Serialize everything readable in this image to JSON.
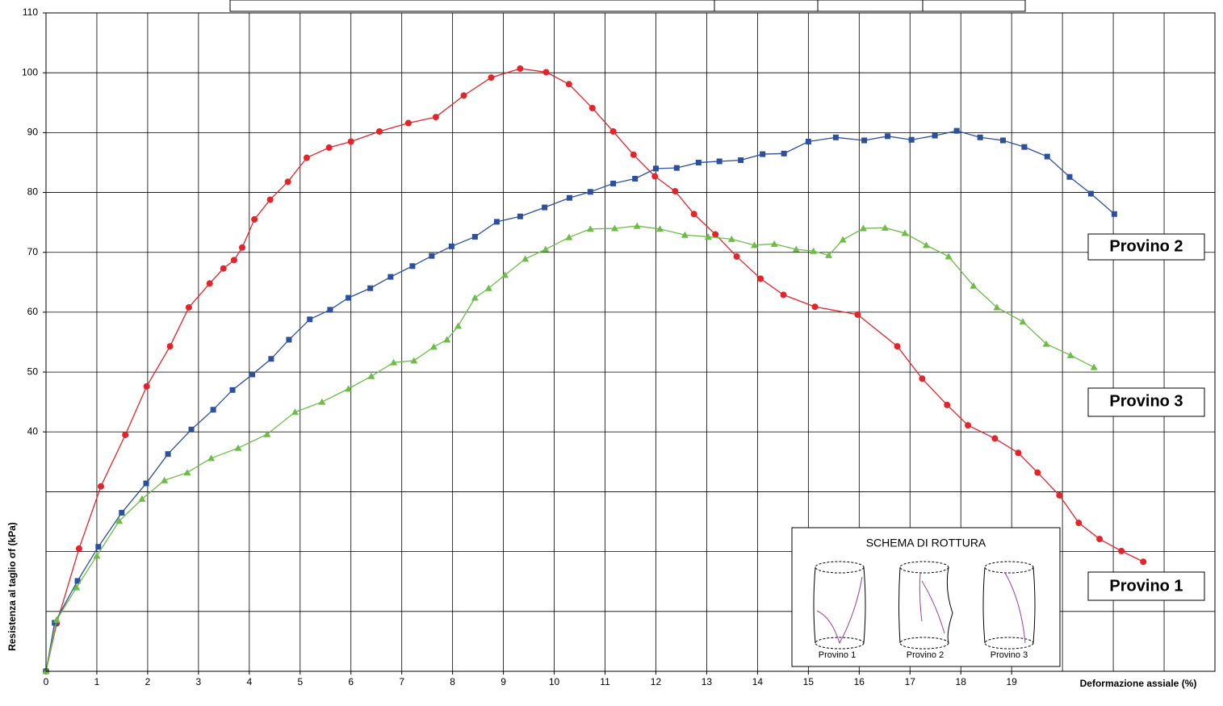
{
  "chart_data": {
    "type": "line",
    "xlabel": "Deformazione assiale (%)",
    "ylabel": "Resistenza al taglio σf (kPa)",
    "xlim": [
      0,
      23
    ],
    "ylim": [
      0,
      110
    ],
    "xticks": [
      0,
      1,
      2,
      3,
      4,
      5,
      6,
      7,
      8,
      9,
      10,
      11,
      12,
      13,
      14,
      15,
      16,
      17,
      18,
      19
    ],
    "xgrid": [
      0,
      1,
      2,
      3,
      4,
      5,
      6,
      7,
      8,
      9,
      10,
      11,
      12,
      13,
      14,
      15,
      16,
      17,
      18,
      19,
      20,
      21,
      22,
      23
    ],
    "yticks": [
      40,
      50,
      60,
      70,
      80,
      90,
      100,
      110
    ],
    "ygrid": [
      0,
      10,
      20,
      30,
      40,
      50,
      60,
      70,
      80,
      90,
      100,
      110
    ],
    "grid": true,
    "series": [
      {
        "name": "Provino 1",
        "color": "#e5242a",
        "marker": "circle",
        "x": [
          0,
          0.21,
          0.65,
          1.08,
          1.56,
          1.98,
          2.44,
          2.81,
          3.22,
          3.49,
          3.7,
          3.86,
          4.1,
          4.41,
          4.76,
          5.13,
          5.57,
          6.0,
          6.56,
          7.13,
          7.67,
          8.22,
          8.76,
          9.33,
          9.84,
          10.29,
          10.75,
          11.16,
          11.56,
          11.98,
          12.38,
          12.75,
          13.17,
          13.59,
          14.06,
          14.51,
          15.13,
          15.97,
          16.75,
          17.24,
          17.73,
          18.14,
          18.67,
          19.13,
          19.51,
          19.94,
          20.32,
          20.73,
          21.16,
          21.59
        ],
        "values": [
          0,
          8.0,
          20.5,
          30.9,
          39.5,
          47.6,
          54.3,
          60.8,
          64.8,
          67.3,
          68.7,
          70.8,
          75.5,
          78.8,
          81.8,
          85.8,
          87.5,
          88.5,
          90.2,
          91.6,
          92.6,
          96.2,
          99.2,
          100.7,
          100.1,
          98.1,
          94.1,
          90.2,
          86.3,
          82.7,
          80.2,
          76.4,
          73.0,
          69.3,
          65.6,
          62.9,
          60.9,
          59.6,
          54.3,
          48.9,
          44.5,
          41.1,
          38.9,
          36.5,
          33.2,
          29.4,
          24.8,
          22.1,
          20.1,
          18.3
        ]
      },
      {
        "name": "Provino 2",
        "color": "#2c4f9e",
        "marker": "square",
        "x": [
          0,
          0.17,
          0.62,
          1.03,
          1.49,
          1.97,
          2.4,
          2.86,
          3.29,
          3.67,
          4.06,
          4.43,
          4.78,
          5.19,
          5.59,
          5.95,
          6.38,
          6.78,
          7.21,
          7.59,
          7.98,
          8.44,
          8.87,
          9.33,
          9.81,
          10.3,
          10.71,
          11.16,
          11.59,
          12.0,
          12.41,
          12.84,
          13.25,
          13.67,
          14.1,
          14.52,
          15.0,
          15.54,
          16.1,
          16.56,
          17.03,
          17.49,
          17.92,
          18.38,
          18.83,
          19.25,
          19.7,
          20.14,
          20.56,
          21.02
        ],
        "values": [
          0,
          8.1,
          15.1,
          20.8,
          26.5,
          31.4,
          36.3,
          40.4,
          43.7,
          47.0,
          49.6,
          52.2,
          55.4,
          58.8,
          60.4,
          62.4,
          64.0,
          65.9,
          67.7,
          69.4,
          71.0,
          72.6,
          75.1,
          76.0,
          77.5,
          79.1,
          80.1,
          81.5,
          82.3,
          84.0,
          84.1,
          85.0,
          85.2,
          85.4,
          86.4,
          86.5,
          88.5,
          89.2,
          88.7,
          89.4,
          88.8,
          89.5,
          90.3,
          89.2,
          88.7,
          87.6,
          86.0,
          82.6,
          79.8,
          76.4
        ]
      },
      {
        "name": "Provino 3",
        "color": "#6cbd45",
        "marker": "triangle",
        "x": [
          0,
          0.21,
          0.6,
          1.0,
          1.44,
          1.89,
          2.33,
          2.78,
          3.25,
          3.78,
          4.35,
          4.9,
          5.43,
          5.95,
          6.4,
          6.84,
          7.24,
          7.63,
          7.89,
          8.11,
          8.44,
          8.71,
          9.03,
          9.43,
          9.83,
          10.29,
          10.71,
          11.19,
          11.63,
          12.08,
          12.57,
          13.03,
          13.49,
          13.94,
          14.33,
          14.76,
          15.1,
          15.4,
          15.68,
          16.08,
          16.51,
          16.9,
          17.32,
          17.76,
          18.25,
          18.71,
          19.22,
          19.68,
          20.16,
          20.62
        ],
        "values": [
          0,
          8.6,
          14.0,
          19.3,
          25.1,
          28.8,
          31.9,
          33.2,
          35.6,
          37.3,
          39.6,
          43.3,
          45.0,
          47.2,
          49.3,
          51.6,
          51.9,
          54.2,
          55.4,
          57.7,
          62.4,
          64.0,
          66.2,
          68.9,
          70.5,
          72.5,
          73.9,
          74.0,
          74.4,
          73.9,
          72.9,
          72.6,
          72.2,
          71.2,
          71.4,
          70.5,
          70.2,
          69.5,
          72.1,
          74.0,
          74.1,
          73.2,
          71.2,
          69.3,
          64.4,
          60.8,
          58.4,
          54.7,
          52.8,
          50.8
        ]
      }
    ],
    "inset": {
      "title": "SCHEMA DI ROTTURA",
      "labels": [
        "Provino 1",
        "Provino 2",
        "Provino 3"
      ]
    }
  }
}
